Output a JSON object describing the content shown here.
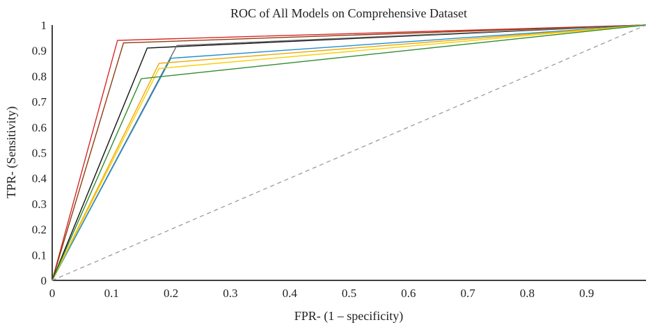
{
  "chart_data": {
    "type": "line",
    "title": "ROC of All Models on Comprehensive Dataset",
    "xlabel": "FPR- (1 – specificity)",
    "ylabel": "TPR- (Sensitivity)",
    "xlim": [
      0,
      1
    ],
    "ylim": [
      0,
      1
    ],
    "x_ticks": [
      "0",
      "0.1",
      "0.2",
      "0.3",
      "0.4",
      "0.5",
      "0.6",
      "0.7",
      "0.8",
      "0.9"
    ],
    "y_ticks": [
      "0",
      "0.1",
      "0.2",
      "0.3",
      "0.4",
      "0.5",
      "0.6",
      "0.7",
      "0.8",
      "0.9",
      "1"
    ],
    "grid": false,
    "legend": "none",
    "series": [
      {
        "color": "#d62728",
        "x": [
          0,
          0.11,
          1
        ],
        "y": [
          0,
          0.94,
          1
        ]
      },
      {
        "color": "#8c3d0f",
        "x": [
          0,
          0.12,
          1
        ],
        "y": [
          0,
          0.93,
          1
        ]
      },
      {
        "color": "#111111",
        "x": [
          0,
          0.16,
          1
        ],
        "y": [
          0,
          0.91,
          1
        ]
      },
      {
        "color": "#6a6a6a",
        "x": [
          0,
          0.21,
          1
        ],
        "y": [
          0,
          0.92,
          1
        ]
      },
      {
        "color": "#1f8fd0",
        "x": [
          0,
          0.2,
          1
        ],
        "y": [
          0,
          0.87,
          1
        ]
      },
      {
        "color": "#f2a900",
        "x": [
          0,
          0.18,
          1
        ],
        "y": [
          0,
          0.85,
          1
        ]
      },
      {
        "color": "#f5d000",
        "x": [
          0,
          0.18,
          1
        ],
        "y": [
          0,
          0.83,
          1
        ]
      },
      {
        "color": "#2e8b2e",
        "x": [
          0,
          0.15,
          1
        ],
        "y": [
          0,
          0.79,
          1
        ]
      },
      {
        "color": "#9a9a9a",
        "dashed": true,
        "x": [
          0,
          1
        ],
        "y": [
          0,
          1
        ]
      }
    ]
  }
}
